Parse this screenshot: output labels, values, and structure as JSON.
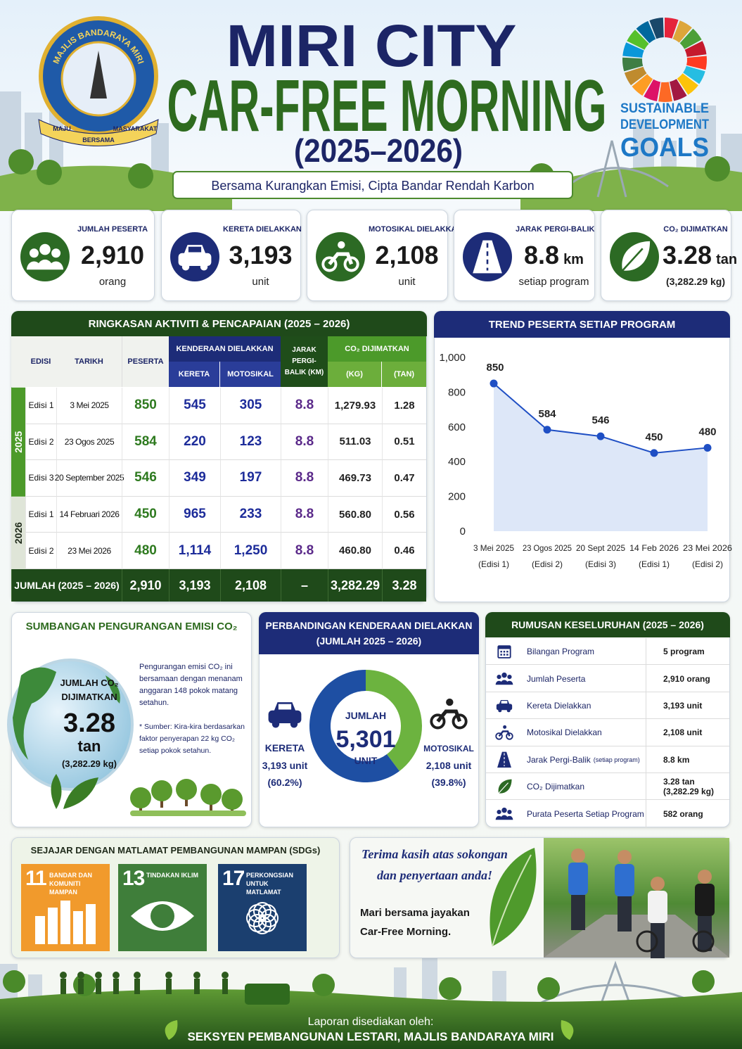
{
  "header": {
    "logo": {
      "ring_text": "MAJLIS BANDARAYA MIRI",
      "ribbon": [
        "MAJU",
        "BERSAMA",
        "MASYARAKAT"
      ]
    },
    "title_lines": [
      "MIRI CITY",
      "CAR-FREE MORNING",
      "(2025–2026)"
    ],
    "tagline": "Bersama Kurangkan Emisi, Cipta Bandar Rendah Karbon",
    "sdg_logo": [
      "SUSTAINABLE",
      "DEVELOPMENT",
      "GOALS"
    ]
  },
  "stats": [
    {
      "label": "JUMLAH PESERTA",
      "value": "2,910",
      "unit": "orang"
    },
    {
      "label": "KERETA DIELAKKAN",
      "value": "3,193",
      "unit": "unit"
    },
    {
      "label": "MOTOSIKAL DIELAKKAN",
      "value": "2,108",
      "unit": "unit"
    },
    {
      "label": "JARAK PERGI-BALIK",
      "value": "8.8",
      "unit": "km",
      "note": "setiap program"
    },
    {
      "label": "CO₂ DIJIMATKAN",
      "value": "3.28",
      "unit": "tan",
      "note": "(3,282.29 kg)"
    }
  ],
  "table": {
    "title": "RINGKASAN AKTIVITI & PENCAPAIAN (2025 – 2026)",
    "headers": {
      "edisi": "EDISI",
      "tarikh": "TARIKH",
      "peserta": "PESERTA",
      "kenderaan": "KENDERAAN DIELAKKAN",
      "kereta": "KERETA",
      "motosikal": "MOTOSIKAL",
      "jarak": "JARAK PERGI-BALIK (KM)",
      "co2": "CO₂ DIJIMATKAN",
      "kg": "(KG)",
      "tan": "(TAN)"
    },
    "groups": [
      {
        "year": "2025",
        "rows": [
          [
            "Edisi 1",
            "3 Mei 2025",
            "850",
            "545",
            "305",
            "8.8",
            "1,279.93",
            "1.28"
          ],
          [
            "Edisi 2",
            "23 Ogos 2025",
            "584",
            "220",
            "123",
            "8.8",
            "511.03",
            "0.51"
          ],
          [
            "Edisi 3",
            "20 September 2025",
            "546",
            "349",
            "197",
            "8.8",
            "469.73",
            "0.47"
          ]
        ]
      },
      {
        "year": "2026",
        "rows": [
          [
            "Edisi 1",
            "14 Februari 2026",
            "450",
            "965",
            "233",
            "8.8",
            "560.80",
            "0.56"
          ],
          [
            "Edisi 2",
            "23 Mei 2026",
            "480",
            "1,114",
            "1,250",
            "8.8",
            "460.80",
            "0.46"
          ]
        ]
      }
    ],
    "total": [
      "JUMLAH (2025 – 2026)",
      "2,910",
      "3,193",
      "2,108",
      "–",
      "3,282.29",
      "3.28"
    ]
  },
  "chart_data": [
    {
      "type": "line",
      "title": "TREND PESERTA SETIAP PROGRAM",
      "categories": [
        "3 Mei 2025",
        "23 Ogos 2025",
        "20 Sept 2025",
        "14 Feb 2026",
        "23 Mei 2026"
      ],
      "category_notes": [
        "(Edisi 1)",
        "(Edisi 2)",
        "(Edisi 3)",
        "(Edisi 1)",
        "(Edisi 2)"
      ],
      "values": [
        850,
        584,
        546,
        450,
        480
      ],
      "color": "#1f4fc4",
      "area_color": "#dde7f8",
      "ylim": [
        0,
        1000
      ],
      "yticks": [
        0,
        200,
        400,
        600,
        800,
        {
          "value": 1000,
          "label": "1,000"
        }
      ],
      "grid": false
    },
    {
      "type": "donut",
      "title": "PERBANDINGAN KENDERAAN DIELAKKAN",
      "subtitle": "(JUMLAH 2025 – 2026)",
      "categories": [
        "KERETA",
        "MOTOSIKAL"
      ],
      "values": [
        3193,
        2108
      ],
      "value_labels": [
        "3,193 unit",
        "2,108 unit"
      ],
      "percent_labels": [
        "(60.2%)",
        "(39.8%)"
      ],
      "colors": [
        "#1e4fa3",
        "#6cb33f"
      ],
      "center": [
        "JUMLAH",
        "5,301",
        "UNIT"
      ]
    }
  ],
  "emission": {
    "title": "SUMBANGAN PENGURANGAN EMISI CO₂",
    "globe": [
      "JUMLAH CO₂",
      "DIJIMATKAN",
      "3.28",
      "tan",
      "(3,282.29 kg)"
    ],
    "note": "Pengurangan emisi CO₂ ini bersamaan dengan menanam anggaran 148 pokok matang setahun.",
    "source": "* Sumber: Kira-kira berdasarkan faktor penyerapan 22 kg CO₂ setiap pokok setahun."
  },
  "summary": {
    "title": "RUMUSAN KESELURUHAN (2025 – 2026)",
    "rows": [
      {
        "label": "Bilangan Program",
        "value": "5 program"
      },
      {
        "label": "Jumlah Peserta",
        "value": "2,910 orang"
      },
      {
        "label": "Kereta Dielakkan",
        "value": "3,193 unit"
      },
      {
        "label": "Motosikal Dielakkan",
        "value": "2,108 unit"
      },
      {
        "label": "Jarak Pergi-Balik",
        "note": "(setiap program)",
        "value": "8.8 km"
      },
      {
        "label": "CO₂ Dijimatkan",
        "value": "3.28 tan",
        "value_note": "(3,282.29 kg)"
      },
      {
        "label": "Purata Peserta Setiap Program",
        "value": "582 orang"
      }
    ]
  },
  "sdgs": {
    "title": "SEJAJAR DENGAN MATLAMAT PEMBANGUNAN MAMPAN (SDGs)",
    "goals": [
      {
        "number": "11",
        "label": "BANDAR DAN KOMUNITI MAMPAN"
      },
      {
        "number": "13",
        "label": "TINDAKAN IKLIM"
      },
      {
        "number": "17",
        "label": "PERKONGSIAN UNTUK MATLAMAT"
      }
    ]
  },
  "thanks": {
    "lines": [
      "Terima kasih atas sokongan",
      "dan penyertaan anda!"
    ],
    "message": [
      "Mari bersama jayakan",
      "Car-Free Morning."
    ]
  },
  "footer": {
    "prepared_by": "Laporan disediakan oleh:",
    "section": "SEKSYEN PEMBANGUNAN LESTARI, MAJLIS BANDARAYA MIRI"
  }
}
